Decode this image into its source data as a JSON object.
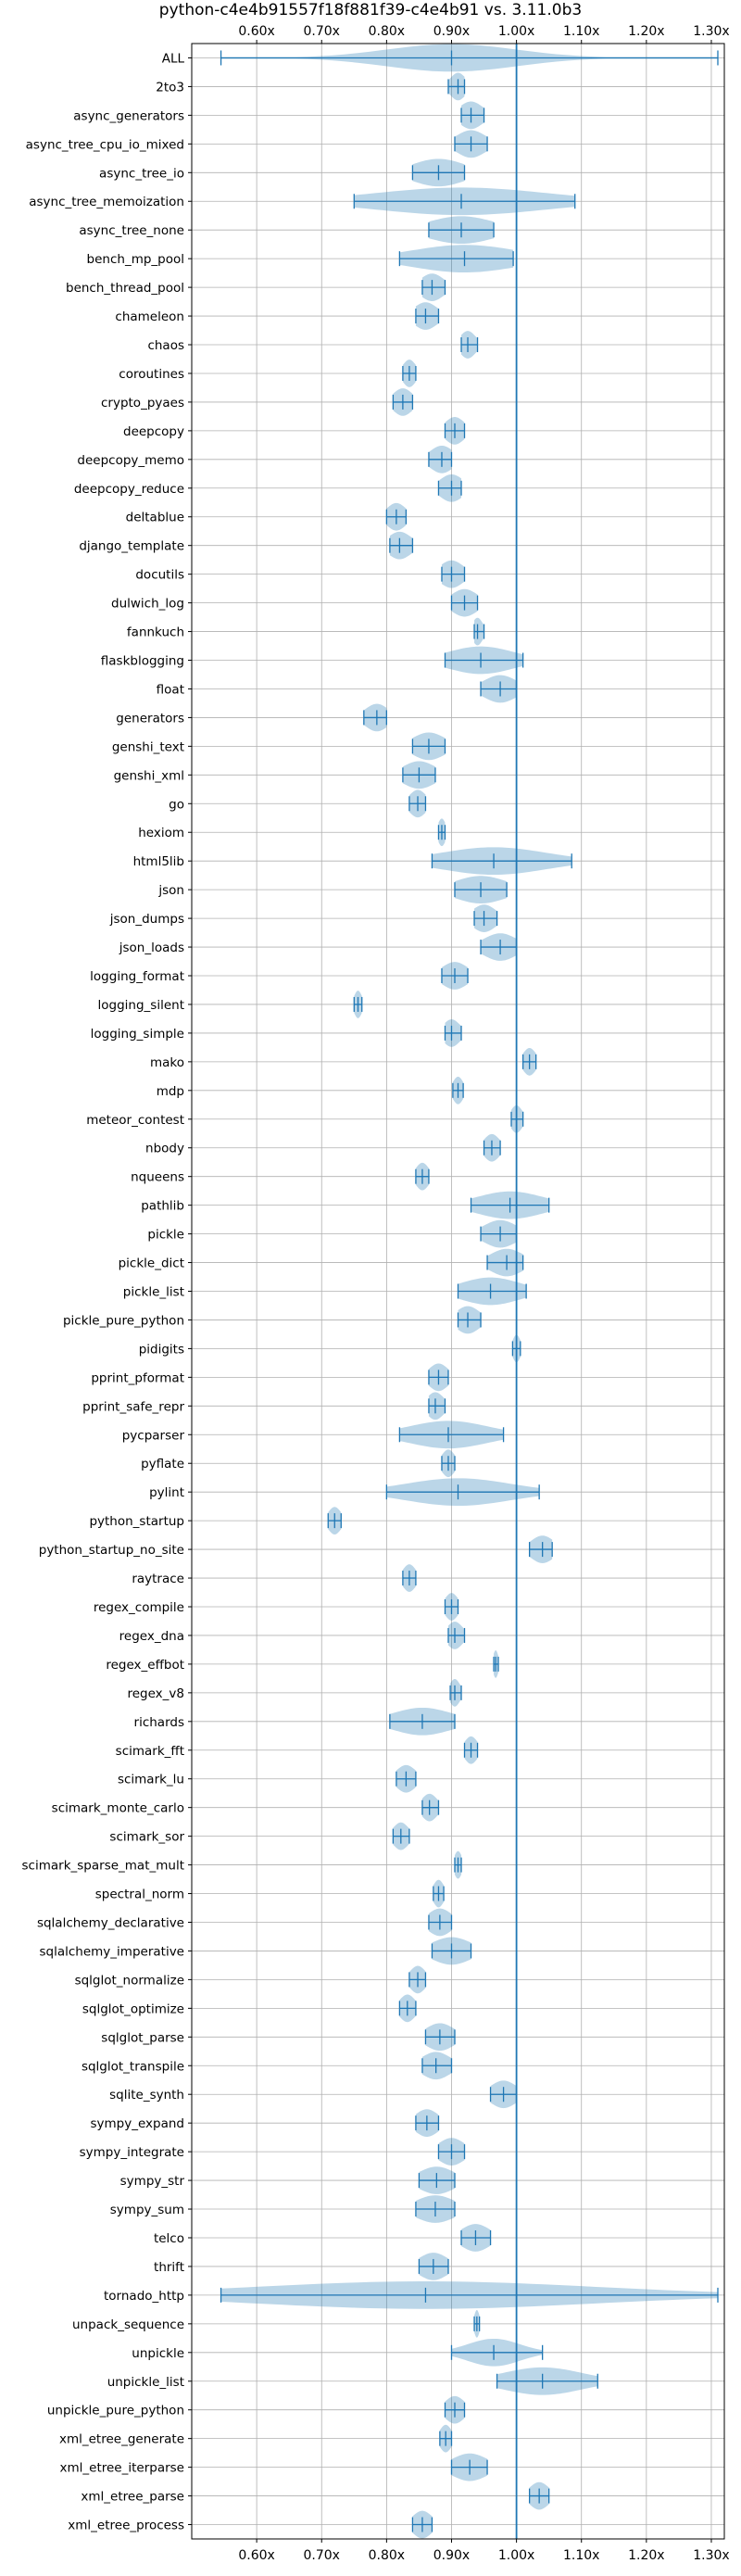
{
  "chart_data": {
    "type": "violin",
    "title": "python-c4e4b91557f18f881f39-c4e4b91 vs. 3.11.0b3",
    "xlabel": "",
    "ylabel": "",
    "orientation": "horizontal",
    "xlim": [
      0.5,
      1.32
    ],
    "xticks": [
      0.6,
      0.7,
      0.8,
      0.9,
      1.0,
      1.1,
      1.2,
      1.3
    ],
    "xtick_labels": [
      "0.60x",
      "0.70x",
      "0.80x",
      "0.90x",
      "1.00x",
      "1.10x",
      "1.20x",
      "1.30x"
    ],
    "reference_line": 1.0,
    "grid": true,
    "series_color": "#1f77b4",
    "benchmarks": [
      {
        "name": "ALL",
        "min": 0.545,
        "max": 1.31,
        "median": 0.9,
        "spread": 0.1
      },
      {
        "name": "2to3",
        "min": 0.895,
        "max": 0.92,
        "median": 0.91,
        "spread": 0.012
      },
      {
        "name": "async_generators",
        "min": 0.915,
        "max": 0.95,
        "median": 0.93,
        "spread": 0.018
      },
      {
        "name": "async_tree_cpu_io_mixed",
        "min": 0.905,
        "max": 0.955,
        "median": 0.93,
        "spread": 0.022
      },
      {
        "name": "async_tree_io",
        "min": 0.84,
        "max": 0.92,
        "median": 0.88,
        "spread": 0.04
      },
      {
        "name": "async_tree_memoization",
        "min": 0.75,
        "max": 1.09,
        "median": 0.915,
        "spread": 0.13
      },
      {
        "name": "async_tree_none",
        "min": 0.865,
        "max": 0.965,
        "median": 0.915,
        "spread": 0.05
      },
      {
        "name": "bench_mp_pool",
        "min": 0.82,
        "max": 0.995,
        "median": 0.92,
        "spread": 0.08
      },
      {
        "name": "bench_thread_pool",
        "min": 0.855,
        "max": 0.89,
        "median": 0.87,
        "spread": 0.018
      },
      {
        "name": "chameleon",
        "min": 0.845,
        "max": 0.88,
        "median": 0.86,
        "spread": 0.018
      },
      {
        "name": "chaos",
        "min": 0.915,
        "max": 0.94,
        "median": 0.925,
        "spread": 0.012
      },
      {
        "name": "coroutines",
        "min": 0.825,
        "max": 0.845,
        "median": 0.835,
        "spread": 0.01
      },
      {
        "name": "crypto_pyaes",
        "min": 0.81,
        "max": 0.84,
        "median": 0.825,
        "spread": 0.015
      },
      {
        "name": "deepcopy",
        "min": 0.89,
        "max": 0.92,
        "median": 0.905,
        "spread": 0.015
      },
      {
        "name": "deepcopy_memo",
        "min": 0.865,
        "max": 0.9,
        "median": 0.885,
        "spread": 0.018
      },
      {
        "name": "deepcopy_reduce",
        "min": 0.88,
        "max": 0.915,
        "median": 0.9,
        "spread": 0.018
      },
      {
        "name": "deltablue",
        "min": 0.8,
        "max": 0.83,
        "median": 0.815,
        "spread": 0.015
      },
      {
        "name": "django_template",
        "min": 0.805,
        "max": 0.84,
        "median": 0.82,
        "spread": 0.018
      },
      {
        "name": "docutils",
        "min": 0.885,
        "max": 0.92,
        "median": 0.9,
        "spread": 0.018
      },
      {
        "name": "dulwich_log",
        "min": 0.9,
        "max": 0.94,
        "median": 0.92,
        "spread": 0.02
      },
      {
        "name": "fannkuch",
        "min": 0.935,
        "max": 0.95,
        "median": 0.94,
        "spread": 0.008
      },
      {
        "name": "flaskblogging",
        "min": 0.89,
        "max": 1.01,
        "median": 0.945,
        "spread": 0.05
      },
      {
        "name": "float",
        "min": 0.945,
        "max": 1.0,
        "median": 0.975,
        "spread": 0.025
      },
      {
        "name": "generators",
        "min": 0.765,
        "max": 0.8,
        "median": 0.785,
        "spread": 0.018
      },
      {
        "name": "genshi_text",
        "min": 0.84,
        "max": 0.89,
        "median": 0.865,
        "spread": 0.025
      },
      {
        "name": "genshi_xml",
        "min": 0.825,
        "max": 0.875,
        "median": 0.85,
        "spread": 0.025
      },
      {
        "name": "go",
        "min": 0.835,
        "max": 0.86,
        "median": 0.848,
        "spread": 0.013
      },
      {
        "name": "hexiom",
        "min": 0.88,
        "max": 0.89,
        "median": 0.885,
        "spread": 0.006
      },
      {
        "name": "html5lib",
        "min": 0.87,
        "max": 1.085,
        "median": 0.965,
        "spread": 0.08
      },
      {
        "name": "json",
        "min": 0.905,
        "max": 0.985,
        "median": 0.945,
        "spread": 0.04
      },
      {
        "name": "json_dumps",
        "min": 0.935,
        "max": 0.97,
        "median": 0.95,
        "spread": 0.018
      },
      {
        "name": "json_loads",
        "min": 0.945,
        "max": 1.0,
        "median": 0.975,
        "spread": 0.025
      },
      {
        "name": "logging_format",
        "min": 0.885,
        "max": 0.925,
        "median": 0.905,
        "spread": 0.02
      },
      {
        "name": "logging_silent",
        "min": 0.75,
        "max": 0.762,
        "median": 0.756,
        "spread": 0.006
      },
      {
        "name": "logging_simple",
        "min": 0.89,
        "max": 0.915,
        "median": 0.9,
        "spread": 0.013
      },
      {
        "name": "mako",
        "min": 1.01,
        "max": 1.03,
        "median": 1.02,
        "spread": 0.01
      },
      {
        "name": "mdp",
        "min": 0.902,
        "max": 0.918,
        "median": 0.91,
        "spread": 0.008
      },
      {
        "name": "meteor_contest",
        "min": 0.992,
        "max": 1.01,
        "median": 1.0,
        "spread": 0.009
      },
      {
        "name": "nbody",
        "min": 0.95,
        "max": 0.975,
        "median": 0.962,
        "spread": 0.012
      },
      {
        "name": "nqueens",
        "min": 0.845,
        "max": 0.865,
        "median": 0.855,
        "spread": 0.01
      },
      {
        "name": "pathlib",
        "min": 0.93,
        "max": 1.05,
        "median": 0.99,
        "spread": 0.05
      },
      {
        "name": "pickle",
        "min": 0.945,
        "max": 1.0,
        "median": 0.975,
        "spread": 0.025
      },
      {
        "name": "pickle_dict",
        "min": 0.955,
        "max": 1.01,
        "median": 0.985,
        "spread": 0.025
      },
      {
        "name": "pickle_list",
        "min": 0.91,
        "max": 1.015,
        "median": 0.96,
        "spread": 0.045
      },
      {
        "name": "pickle_pure_python",
        "min": 0.91,
        "max": 0.945,
        "median": 0.925,
        "spread": 0.018
      },
      {
        "name": "pidigits",
        "min": 0.994,
        "max": 1.006,
        "median": 1.0,
        "spread": 0.006
      },
      {
        "name": "pprint_pformat",
        "min": 0.865,
        "max": 0.895,
        "median": 0.88,
        "spread": 0.015
      },
      {
        "name": "pprint_safe_repr",
        "min": 0.865,
        "max": 0.89,
        "median": 0.875,
        "spread": 0.013
      },
      {
        "name": "pycparser",
        "min": 0.82,
        "max": 0.98,
        "median": 0.895,
        "spread": 0.06
      },
      {
        "name": "pyflate",
        "min": 0.885,
        "max": 0.905,
        "median": 0.895,
        "spread": 0.01
      },
      {
        "name": "pylint",
        "min": 0.8,
        "max": 1.035,
        "median": 0.91,
        "spread": 0.08
      },
      {
        "name": "python_startup",
        "min": 0.71,
        "max": 0.73,
        "median": 0.72,
        "spread": 0.01
      },
      {
        "name": "python_startup_no_site",
        "min": 1.02,
        "max": 1.055,
        "median": 1.04,
        "spread": 0.018
      },
      {
        "name": "raytrace",
        "min": 0.825,
        "max": 0.845,
        "median": 0.835,
        "spread": 0.01
      },
      {
        "name": "regex_compile",
        "min": 0.89,
        "max": 0.91,
        "median": 0.9,
        "spread": 0.01
      },
      {
        "name": "regex_dna",
        "min": 0.895,
        "max": 0.92,
        "median": 0.905,
        "spread": 0.012
      },
      {
        "name": "regex_effbot",
        "min": 0.965,
        "max": 0.972,
        "median": 0.968,
        "spread": 0.004
      },
      {
        "name": "regex_v8",
        "min": 0.898,
        "max": 0.915,
        "median": 0.905,
        "spread": 0.008
      },
      {
        "name": "richards",
        "min": 0.805,
        "max": 0.905,
        "median": 0.855,
        "spread": 0.045
      },
      {
        "name": "scimark_fft",
        "min": 0.92,
        "max": 0.94,
        "median": 0.93,
        "spread": 0.01
      },
      {
        "name": "scimark_lu",
        "min": 0.815,
        "max": 0.845,
        "median": 0.83,
        "spread": 0.015
      },
      {
        "name": "scimark_monte_carlo",
        "min": 0.855,
        "max": 0.88,
        "median": 0.866,
        "spread": 0.012
      },
      {
        "name": "scimark_sor",
        "min": 0.81,
        "max": 0.835,
        "median": 0.822,
        "spread": 0.012
      },
      {
        "name": "scimark_sparse_mat_mult",
        "min": 0.905,
        "max": 0.915,
        "median": 0.91,
        "spread": 0.006
      },
      {
        "name": "spectral_norm",
        "min": 0.872,
        "max": 0.888,
        "median": 0.88,
        "spread": 0.008
      },
      {
        "name": "sqlalchemy_declarative",
        "min": 0.865,
        "max": 0.9,
        "median": 0.882,
        "spread": 0.018
      },
      {
        "name": "sqlalchemy_imperative",
        "min": 0.87,
        "max": 0.93,
        "median": 0.9,
        "spread": 0.03
      },
      {
        "name": "sqlglot_normalize",
        "min": 0.835,
        "max": 0.86,
        "median": 0.848,
        "spread": 0.012
      },
      {
        "name": "sqlglot_optimize",
        "min": 0.82,
        "max": 0.845,
        "median": 0.832,
        "spread": 0.012
      },
      {
        "name": "sqlglot_parse",
        "min": 0.86,
        "max": 0.905,
        "median": 0.882,
        "spread": 0.022
      },
      {
        "name": "sqlglot_transpile",
        "min": 0.855,
        "max": 0.9,
        "median": 0.876,
        "spread": 0.022
      },
      {
        "name": "sqlite_synth",
        "min": 0.96,
        "max": 1.0,
        "median": 0.98,
        "spread": 0.02
      },
      {
        "name": "sympy_expand",
        "min": 0.845,
        "max": 0.88,
        "median": 0.862,
        "spread": 0.018
      },
      {
        "name": "sympy_integrate",
        "min": 0.88,
        "max": 0.92,
        "median": 0.9,
        "spread": 0.02
      },
      {
        "name": "sympy_str",
        "min": 0.85,
        "max": 0.905,
        "median": 0.877,
        "spread": 0.027
      },
      {
        "name": "sympy_sum",
        "min": 0.845,
        "max": 0.905,
        "median": 0.875,
        "spread": 0.03
      },
      {
        "name": "telco",
        "min": 0.915,
        "max": 0.96,
        "median": 0.937,
        "spread": 0.022
      },
      {
        "name": "thrift",
        "min": 0.85,
        "max": 0.895,
        "median": 0.872,
        "spread": 0.022
      },
      {
        "name": "tornado_http",
        "min": 0.545,
        "max": 1.31,
        "median": 0.86,
        "spread": 0.26
      },
      {
        "name": "unpack_sequence",
        "min": 0.935,
        "max": 0.943,
        "median": 0.939,
        "spread": 0.004
      },
      {
        "name": "unpickle",
        "min": 0.9,
        "max": 1.04,
        "median": 0.965,
        "spread": 0.04
      },
      {
        "name": "unpickle_list",
        "min": 0.97,
        "max": 1.125,
        "median": 1.04,
        "spread": 0.06
      },
      {
        "name": "unpickle_pure_python",
        "min": 0.89,
        "max": 0.92,
        "median": 0.905,
        "spread": 0.015
      },
      {
        "name": "xml_etree_generate",
        "min": 0.882,
        "max": 0.9,
        "median": 0.891,
        "spread": 0.009
      },
      {
        "name": "xml_etree_iterparse",
        "min": 0.9,
        "max": 0.955,
        "median": 0.928,
        "spread": 0.027
      },
      {
        "name": "xml_etree_parse",
        "min": 1.02,
        "max": 1.05,
        "median": 1.035,
        "spread": 0.015
      },
      {
        "name": "xml_etree_process",
        "min": 0.84,
        "max": 0.87,
        "median": 0.855,
        "spread": 0.015
      }
    ]
  }
}
